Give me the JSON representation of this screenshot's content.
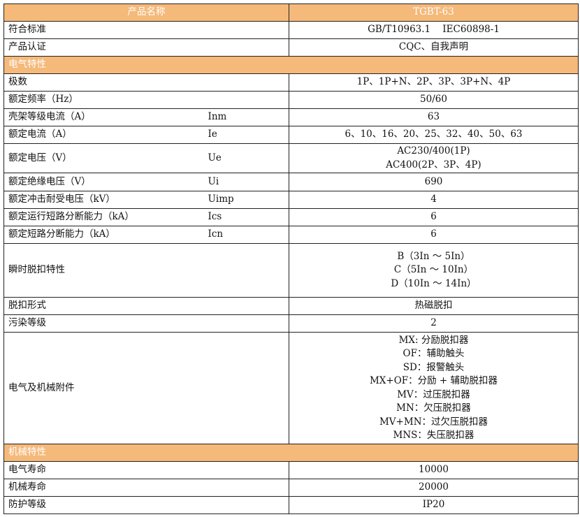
{
  "header": {
    "name": "产品名称",
    "model": "TGBT-63"
  },
  "rows_top": [
    {
      "label": "符合标准",
      "value": "GB/T10963.1    IEC60898-1"
    },
    {
      "label": "产品认证",
      "value": "CQC、自我声明"
    }
  ],
  "section_electrical": "电气特性",
  "electrical": [
    {
      "label": "极数",
      "symbol": "",
      "value": [
        "1P、1P+N、2P、3P、3P+N、4P"
      ]
    },
    {
      "label": "额定频率（Hz）",
      "symbol": "",
      "value": [
        "50/60"
      ]
    },
    {
      "label": "壳架等级电流（A）",
      "symbol": "Inm",
      "value": [
        "63"
      ]
    },
    {
      "label": "额定电流（A）",
      "symbol": "Ie",
      "value": [
        "6、10、16、20、25、32、40、50、63"
      ]
    },
    {
      "label": "额定电压（V）",
      "symbol": "Ue",
      "value": [
        "AC230/400(1P)",
        "AC400(2P、3P、4P)"
      ]
    },
    {
      "label": "额定绝缘电压（V）",
      "symbol": "Ui",
      "value": [
        "690"
      ]
    },
    {
      "label": "额定冲击耐受电压（kV）",
      "symbol": "Uimp",
      "value": [
        "4"
      ]
    },
    {
      "label": "额定运行短路分断能力（kA）",
      "symbol": "Ics",
      "value": [
        "6"
      ]
    },
    {
      "label": "额定短路分断能力（kA）",
      "symbol": "Icn",
      "value": [
        "6"
      ]
    },
    {
      "label": "瞬时脱扣特性",
      "symbol": "",
      "value": [
        "B（3In ～ 5In）",
        "C（5In ～ 10In）",
        "D（10In ～ 14In）"
      ]
    },
    {
      "label": "脱扣形式",
      "symbol": "",
      "value": [
        "热磁脱扣"
      ]
    },
    {
      "label": "污染等级",
      "symbol": "",
      "value": [
        "2"
      ]
    },
    {
      "label": "电气及机械附件",
      "symbol": "",
      "value": [
        "MX: 分励脱扣器",
        "OF：辅助触头",
        "SD：报警触头",
        "MX+OF：分励 + 辅助脱扣器",
        "MV：过压脱扣器",
        "MN：欠压脱扣器",
        "MV+MN：过欠压脱扣器",
        "MNS：失压脱扣器"
      ]
    }
  ],
  "section_mechanical": "机械特性",
  "mechanical": [
    {
      "label": "电气寿命",
      "value": "10000"
    },
    {
      "label": "机械寿命",
      "value": "20000"
    },
    {
      "label": "防护等级",
      "value": "IP20"
    }
  ]
}
